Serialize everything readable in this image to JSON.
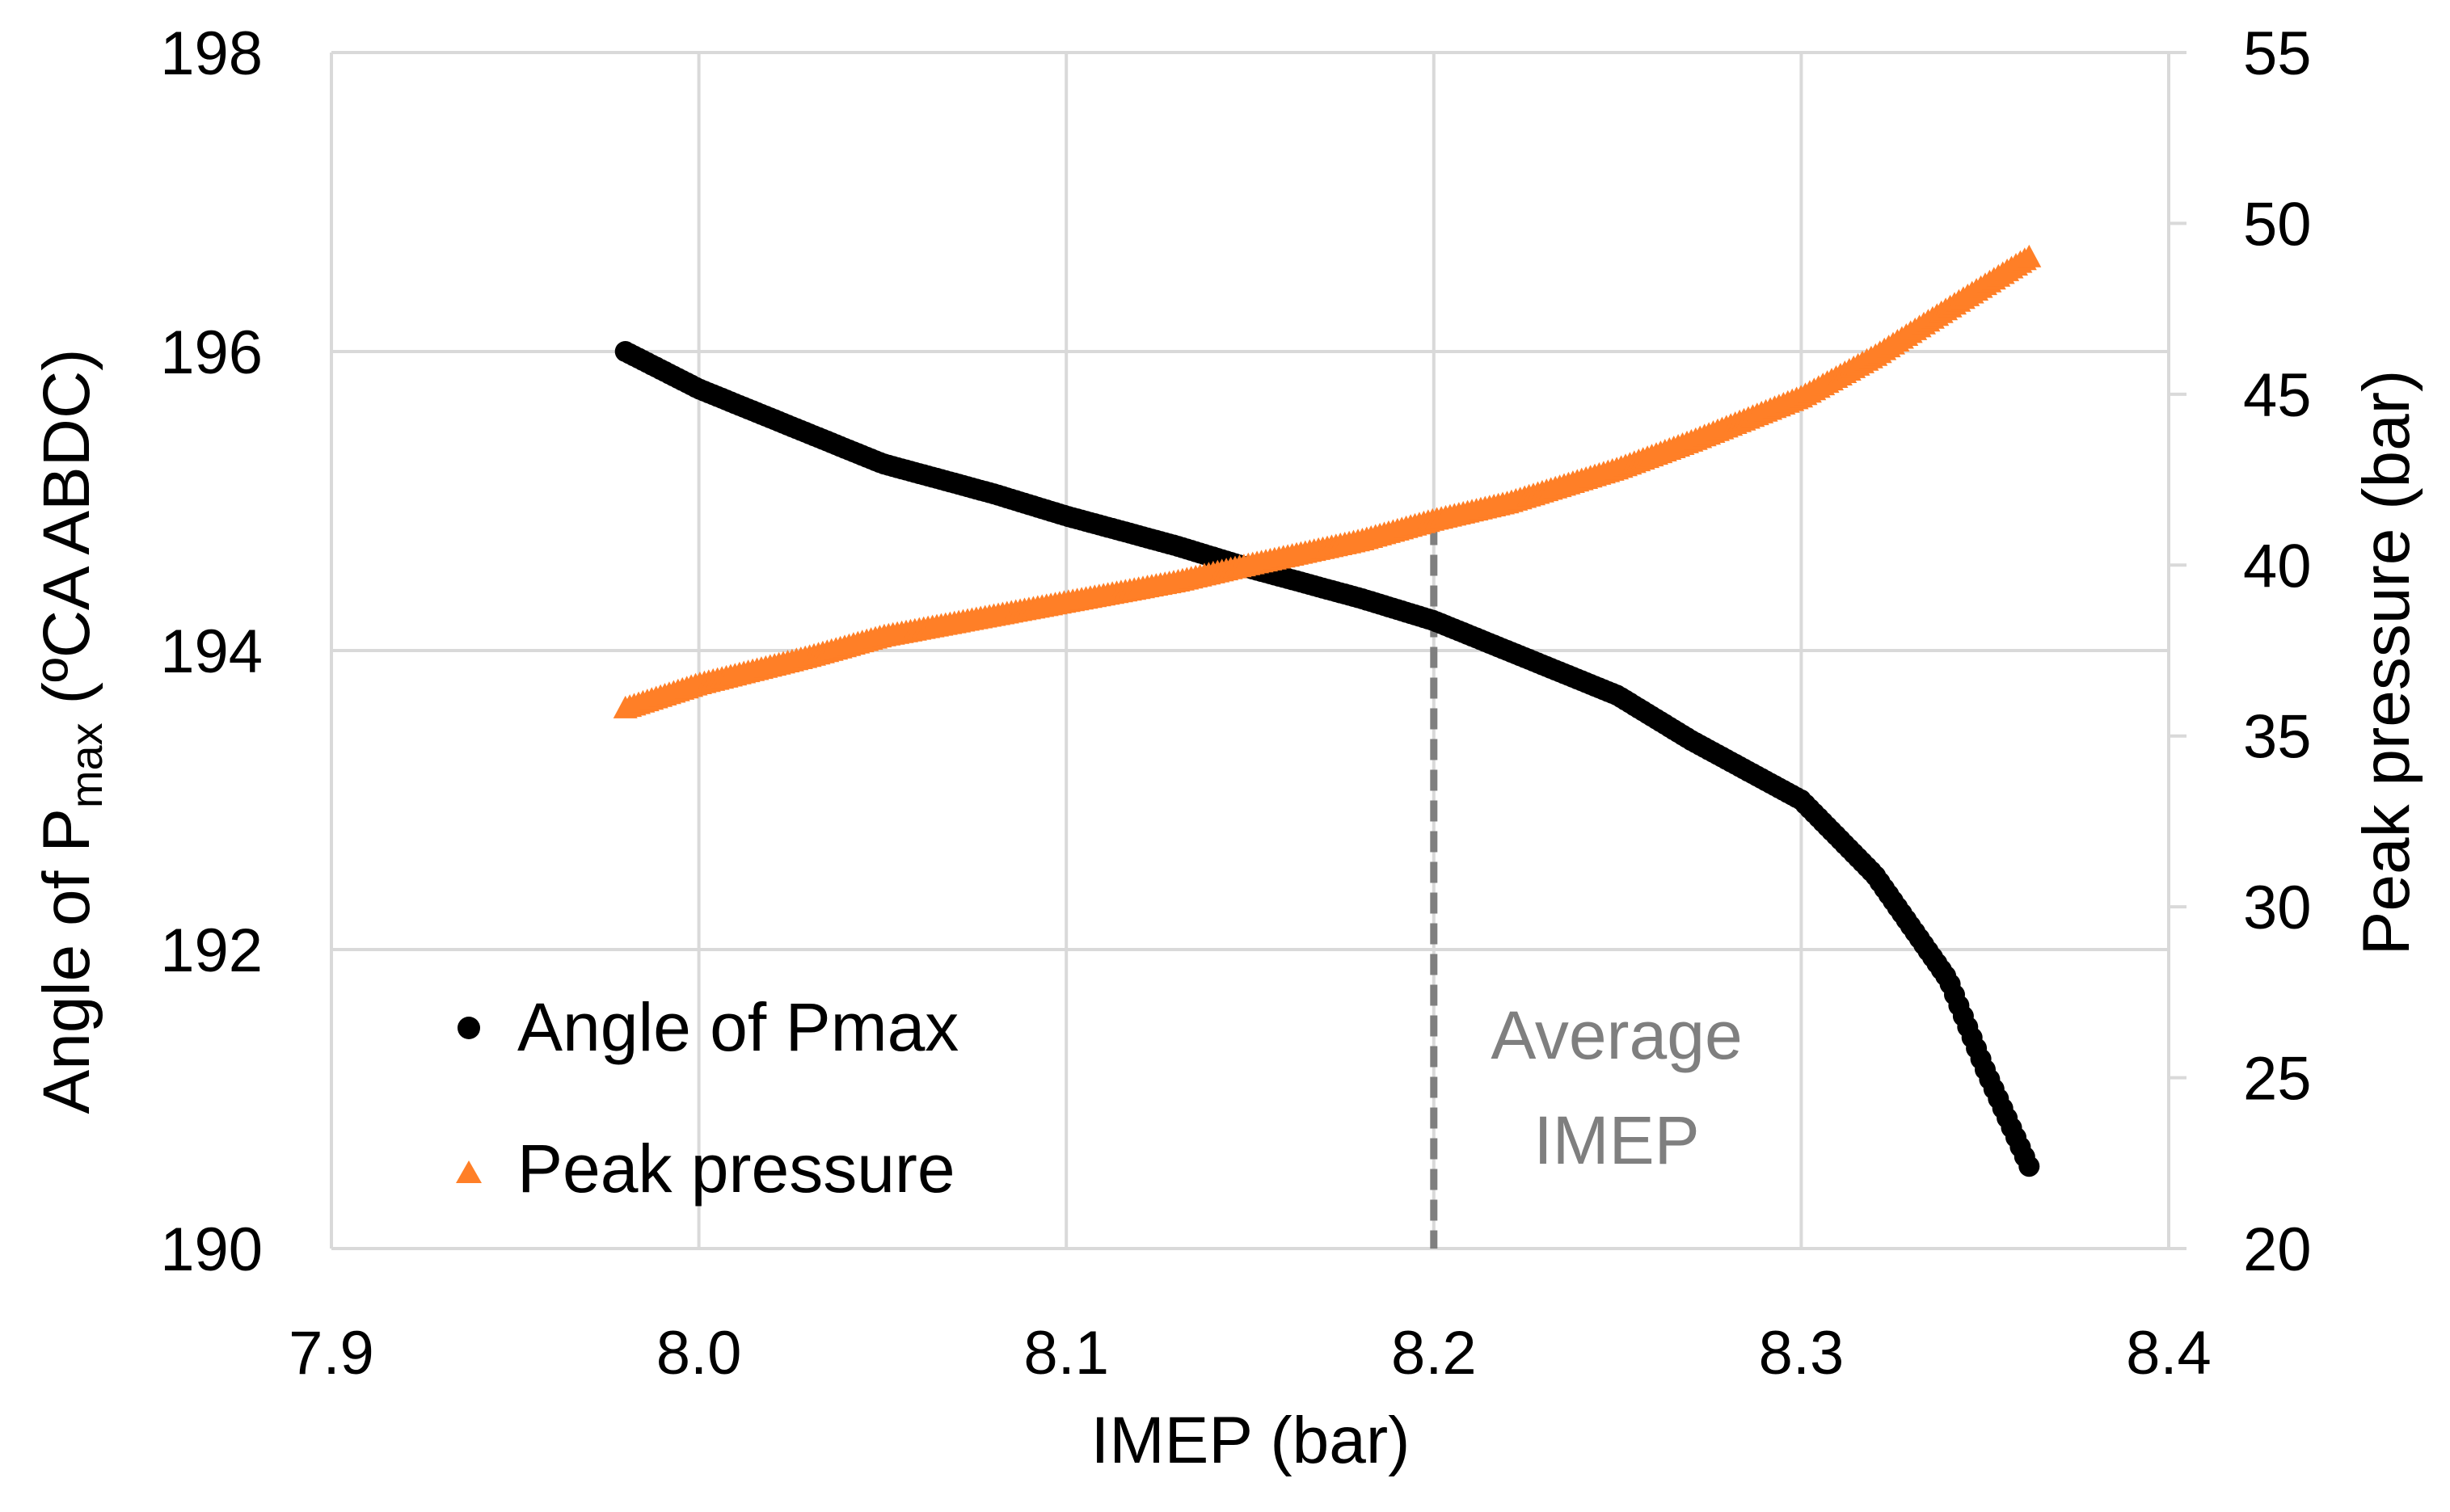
{
  "chart_data": {
    "type": "line",
    "title": "",
    "xlabel": "IMEP (bar)",
    "ylabel_left_main": "Angle of P",
    "ylabel_left_sub": "max",
    "ylabel_left_unit": " (ºCA ABDC)",
    "ylabel_right": "Peak pressure (bar)",
    "xlim": [
      7.9,
      8.4
    ],
    "ylim_left": [
      190,
      198
    ],
    "ylim_right": [
      20,
      55
    ],
    "x_ticks": [
      "7.9",
      "8.0",
      "8.1",
      "8.2",
      "8.3",
      "8.4"
    ],
    "y_left_ticks": [
      "190",
      "192",
      "194",
      "196",
      "198"
    ],
    "y_right_ticks": [
      "20",
      "25",
      "30",
      "35",
      "40",
      "45",
      "50",
      "55"
    ],
    "grid": true,
    "legend_position": "bottom-left",
    "series": [
      {
        "name": "Angle of Pmax",
        "axis": "left",
        "marker": "circle",
        "color": "#000000",
        "x": [
          7.98,
          8.0,
          8.03,
          8.05,
          8.08,
          8.1,
          8.13,
          8.15,
          8.18,
          8.2,
          8.22,
          8.25,
          8.27,
          8.3,
          8.32,
          8.34,
          8.35,
          8.362
        ],
        "y": [
          196.0,
          195.75,
          195.45,
          195.25,
          195.05,
          194.9,
          194.7,
          194.55,
          194.35,
          194.2,
          194.0,
          193.7,
          193.4,
          193.0,
          192.5,
          191.8,
          191.2,
          190.55
        ]
      },
      {
        "name": "Peak pressure",
        "axis": "right",
        "marker": "triangle",
        "color": "#ff7f27",
        "x": [
          7.98,
          8.0,
          8.03,
          8.05,
          8.08,
          8.1,
          8.13,
          8.15,
          8.18,
          8.2,
          8.22,
          8.25,
          8.27,
          8.3,
          8.32,
          8.34,
          8.362
        ],
        "y": [
          35.8,
          36.5,
          37.3,
          37.9,
          38.5,
          38.9,
          39.5,
          40.0,
          40.7,
          41.3,
          41.8,
          42.8,
          43.6,
          44.9,
          46.1,
          47.5,
          49.0
        ]
      }
    ],
    "annotation": {
      "x": 8.2,
      "lines": [
        "Average",
        "IMEP"
      ],
      "color": "#7f7f7f"
    }
  }
}
